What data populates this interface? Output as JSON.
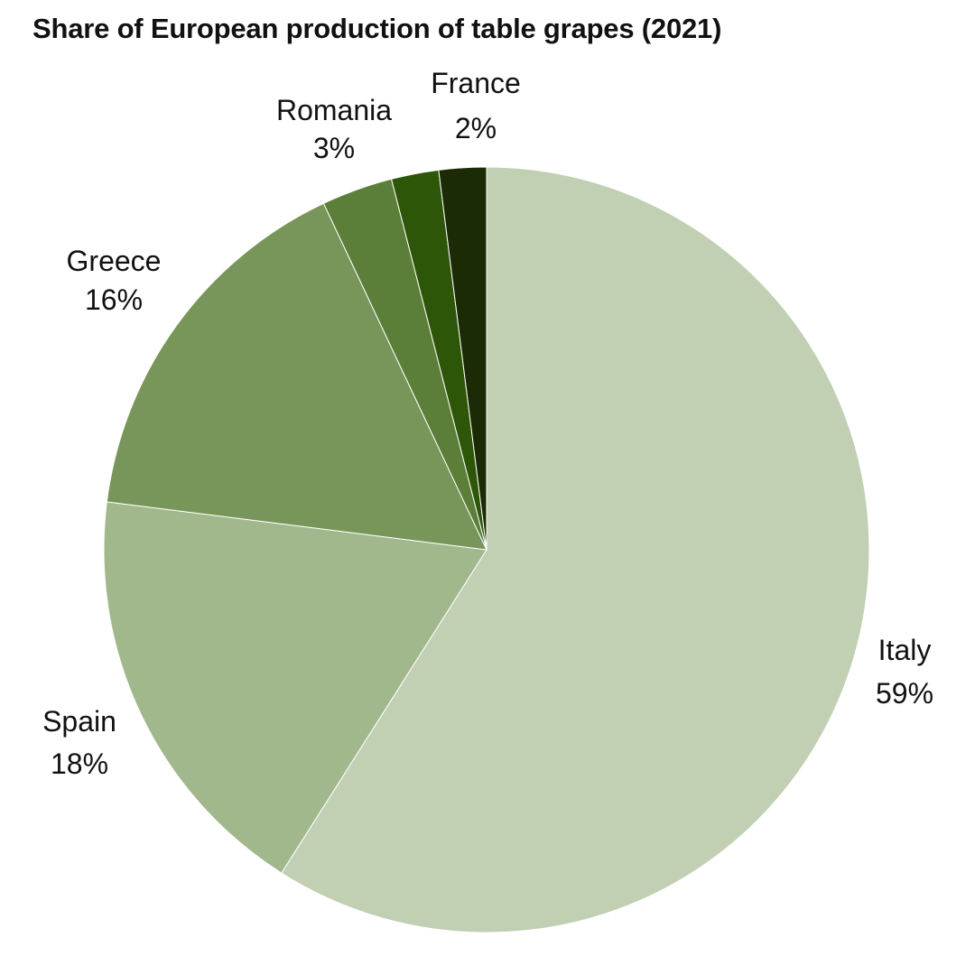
{
  "chart_data": {
    "type": "pie",
    "title": "Share of European production of table grapes (2021)",
    "categories": [
      "Italy",
      "Spain",
      "Greece",
      "Romania",
      "France",
      ""
    ],
    "values": [
      59,
      18,
      16,
      3,
      2,
      2
    ],
    "value_labels": [
      "59%",
      "18%",
      "16%",
      "3%",
      "2%",
      ""
    ],
    "colors": [
      "#c1cfb3",
      "#a1b78c",
      "#789659",
      "#5b7e39",
      "#2e5609",
      "#1a2b05"
    ],
    "start_angle": "12 o'clock",
    "direction": "clockwise",
    "legend": "none (labels outside slices)"
  }
}
